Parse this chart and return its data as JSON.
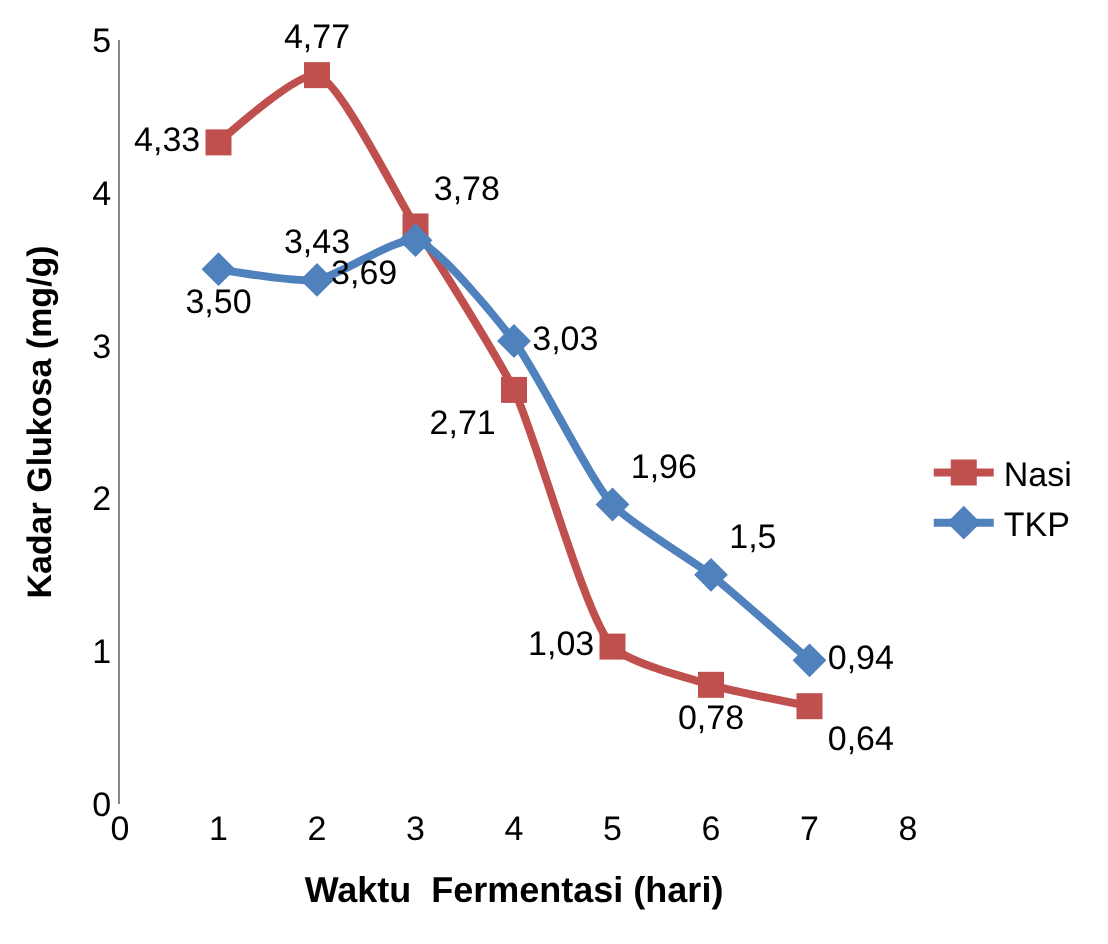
{
  "chart_data": {
    "type": "line",
    "xlabel": "Waktu  Fermentasi (hari)",
    "ylabel": "Kadar Glukosa (mg/g)",
    "x": [
      1,
      2,
      3,
      4,
      5,
      6,
      7
    ],
    "series": [
      {
        "name": "Nasi",
        "color": "#c0504d",
        "marker": "square",
        "values": [
          4.33,
          4.77,
          3.78,
          2.71,
          1.03,
          0.78,
          0.64
        ],
        "value_labels": [
          "4,33",
          "4,77",
          "3,78",
          "2,71",
          "1,03",
          "0,78",
          "0,64"
        ]
      },
      {
        "name": "TKP",
        "color": "#4f81bd",
        "marker": "diamond",
        "values": [
          3.5,
          3.43,
          3.69,
          3.03,
          1.96,
          1.5,
          0.94
        ],
        "value_labels": [
          "3,50",
          "3,43",
          "3,69",
          "3,03",
          "1,96",
          "1,5",
          "0,94"
        ]
      }
    ],
    "xlim": [
      0,
      8
    ],
    "xticks": [
      0,
      1,
      2,
      3,
      4,
      5,
      6,
      7,
      8
    ],
    "ylim": [
      0,
      5
    ],
    "yticks": [
      0,
      1,
      2,
      3,
      4,
      5
    ],
    "legend": "right"
  }
}
